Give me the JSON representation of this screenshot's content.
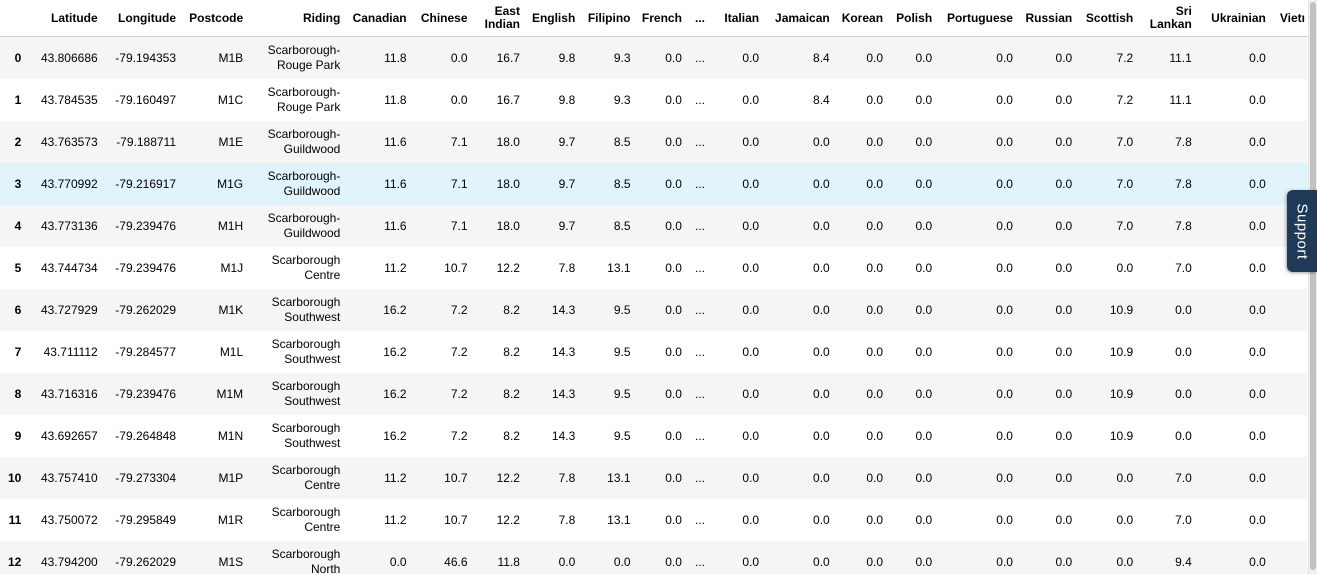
{
  "table": {
    "columns": [
      {
        "key": "idx",
        "label": ""
      },
      {
        "key": "lat",
        "label": "Latitude"
      },
      {
        "key": "lon",
        "label": "Longitude"
      },
      {
        "key": "postcode",
        "label": "Postcode"
      },
      {
        "key": "riding",
        "label": "Riding"
      },
      {
        "key": "canadian",
        "label": "Canadian"
      },
      {
        "key": "chinese",
        "label": "Chinese"
      },
      {
        "key": "east_indian",
        "label": "East Indian"
      },
      {
        "key": "english",
        "label": "English"
      },
      {
        "key": "filipino",
        "label": "Filipino"
      },
      {
        "key": "french",
        "label": "French"
      },
      {
        "key": "ellipsis",
        "label": "..."
      },
      {
        "key": "italian",
        "label": "Italian"
      },
      {
        "key": "jamaican",
        "label": "Jamaican"
      },
      {
        "key": "korean",
        "label": "Korean"
      },
      {
        "key": "polish",
        "label": "Polish"
      },
      {
        "key": "portuguese",
        "label": "Portuguese"
      },
      {
        "key": "russian",
        "label": "Russian"
      },
      {
        "key": "scottish",
        "label": "Scottish"
      },
      {
        "key": "sri_lankan",
        "label": "Sri Lankan"
      },
      {
        "key": "ukrainian",
        "label": "Ukrainian"
      },
      {
        "key": "vietnamese",
        "label": "Vietı"
      }
    ],
    "rows": [
      [
        "0",
        "43.806686",
        "-79.194353",
        "M1B",
        "Scarborough-Rouge Park",
        "11.8",
        "0.0",
        "16.7",
        "9.8",
        "9.3",
        "0.0",
        "...",
        "0.0",
        "8.4",
        "0.0",
        "0.0",
        "0.0",
        "0.0",
        "7.2",
        "11.1",
        "0.0",
        ""
      ],
      [
        "1",
        "43.784535",
        "-79.160497",
        "M1C",
        "Scarborough-Rouge Park",
        "11.8",
        "0.0",
        "16.7",
        "9.8",
        "9.3",
        "0.0",
        "...",
        "0.0",
        "8.4",
        "0.0",
        "0.0",
        "0.0",
        "0.0",
        "7.2",
        "11.1",
        "0.0",
        ""
      ],
      [
        "2",
        "43.763573",
        "-79.188711",
        "M1E",
        "Scarborough-Guildwood",
        "11.6",
        "7.1",
        "18.0",
        "9.7",
        "8.5",
        "0.0",
        "...",
        "0.0",
        "0.0",
        "0.0",
        "0.0",
        "0.0",
        "0.0",
        "7.0",
        "7.8",
        "0.0",
        ""
      ],
      [
        "3",
        "43.770992",
        "-79.216917",
        "M1G",
        "Scarborough-Guildwood",
        "11.6",
        "7.1",
        "18.0",
        "9.7",
        "8.5",
        "0.0",
        "...",
        "0.0",
        "0.0",
        "0.0",
        "0.0",
        "0.0",
        "0.0",
        "7.0",
        "7.8",
        "0.0",
        ""
      ],
      [
        "4",
        "43.773136",
        "-79.239476",
        "M1H",
        "Scarborough-Guildwood",
        "11.6",
        "7.1",
        "18.0",
        "9.7",
        "8.5",
        "0.0",
        "...",
        "0.0",
        "0.0",
        "0.0",
        "0.0",
        "0.0",
        "0.0",
        "7.0",
        "7.8",
        "0.0",
        ""
      ],
      [
        "5",
        "43.744734",
        "-79.239476",
        "M1J",
        "Scarborough Centre",
        "11.2",
        "10.7",
        "12.2",
        "7.8",
        "13.1",
        "0.0",
        "...",
        "0.0",
        "0.0",
        "0.0",
        "0.0",
        "0.0",
        "0.0",
        "0.0",
        "7.0",
        "0.0",
        ""
      ],
      [
        "6",
        "43.727929",
        "-79.262029",
        "M1K",
        "Scarborough Southwest",
        "16.2",
        "7.2",
        "8.2",
        "14.3",
        "9.5",
        "0.0",
        "...",
        "0.0",
        "0.0",
        "0.0",
        "0.0",
        "0.0",
        "0.0",
        "10.9",
        "0.0",
        "0.0",
        ""
      ],
      [
        "7",
        "43.711112",
        "-79.284577",
        "M1L",
        "Scarborough Southwest",
        "16.2",
        "7.2",
        "8.2",
        "14.3",
        "9.5",
        "0.0",
        "...",
        "0.0",
        "0.0",
        "0.0",
        "0.0",
        "0.0",
        "0.0",
        "10.9",
        "0.0",
        "0.0",
        ""
      ],
      [
        "8",
        "43.716316",
        "-79.239476",
        "M1M",
        "Scarborough Southwest",
        "16.2",
        "7.2",
        "8.2",
        "14.3",
        "9.5",
        "0.0",
        "...",
        "0.0",
        "0.0",
        "0.0",
        "0.0",
        "0.0",
        "0.0",
        "10.9",
        "0.0",
        "0.0",
        ""
      ],
      [
        "9",
        "43.692657",
        "-79.264848",
        "M1N",
        "Scarborough Southwest",
        "16.2",
        "7.2",
        "8.2",
        "14.3",
        "9.5",
        "0.0",
        "...",
        "0.0",
        "0.0",
        "0.0",
        "0.0",
        "0.0",
        "0.0",
        "10.9",
        "0.0",
        "0.0",
        ""
      ],
      [
        "10",
        "43.757410",
        "-79.273304",
        "M1P",
        "Scarborough Centre",
        "11.2",
        "10.7",
        "12.2",
        "7.8",
        "13.1",
        "0.0",
        "...",
        "0.0",
        "0.0",
        "0.0",
        "0.0",
        "0.0",
        "0.0",
        "0.0",
        "7.0",
        "0.0",
        ""
      ],
      [
        "11",
        "43.750072",
        "-79.295849",
        "M1R",
        "Scarborough Centre",
        "11.2",
        "10.7",
        "12.2",
        "7.8",
        "13.1",
        "0.0",
        "...",
        "0.0",
        "0.0",
        "0.0",
        "0.0",
        "0.0",
        "0.0",
        "0.0",
        "7.0",
        "0.0",
        ""
      ],
      [
        "12",
        "43.794200",
        "-79.262029",
        "M1S",
        "Scarborough North",
        "0.0",
        "46.6",
        "11.8",
        "0.0",
        "0.0",
        "0.0",
        "...",
        "0.0",
        "0.0",
        "0.0",
        "0.0",
        "0.0",
        "0.0",
        "0.0",
        "9.4",
        "0.0",
        ""
      ]
    ],
    "hovered_row": 3
  },
  "support_tab": {
    "label": "Support",
    "color": "#1e3a57"
  }
}
